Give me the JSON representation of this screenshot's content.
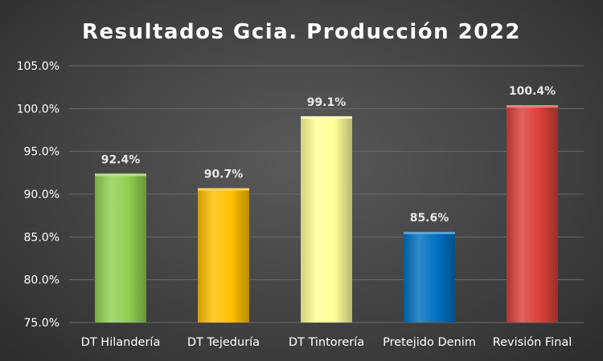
{
  "chart_data": {
    "type": "bar",
    "title": "Resultados Gcia. Producción 2022",
    "categories": [
      "DT Hilandería",
      "DT Tejeduría",
      "DT Tintorería",
      "Pretejido Denim",
      "Revisión Final"
    ],
    "values": [
      92.4,
      90.7,
      99.1,
      85.6,
      100.4
    ],
    "value_labels": [
      "92.4%",
      "90.7%",
      "99.1%",
      "85.6%",
      "100.4%"
    ],
    "bar_colors": [
      "#92d050",
      "#ffc000",
      "#ffff99",
      "#0070c0",
      "#d9403b"
    ],
    "ylim": [
      75,
      105
    ],
    "yticks": [
      75,
      80,
      85,
      90,
      95,
      100,
      105
    ],
    "ytick_labels": [
      "75.0%",
      "80.0%",
      "85.0%",
      "90.0%",
      "95.0%",
      "100.0%",
      "105.0%"
    ],
    "xlabel": "",
    "ylabel": "",
    "grid": true,
    "legend": "none"
  },
  "colors": {
    "text": "#ffffff",
    "gridline": "#6b6b6b"
  }
}
